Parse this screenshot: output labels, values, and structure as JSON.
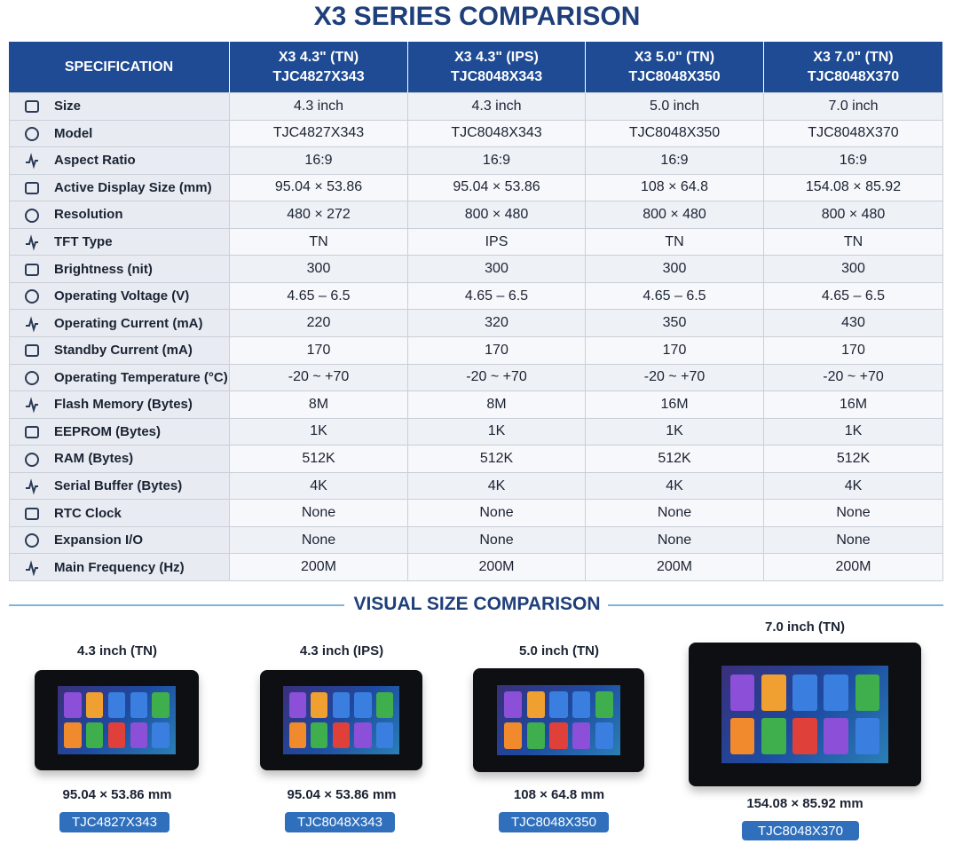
{
  "title": "X3 SERIES COMPARISON",
  "table": {
    "spec_header": "SPECIFICATION",
    "columns": [
      {
        "title": "X3 4.3\" (TN)",
        "model": "TJC4827X343"
      },
      {
        "title": "X3 4.3\" (IPS)",
        "model": "TJC8048X343"
      },
      {
        "title": "X3 5.0\" (TN)",
        "model": "TJC8048X350"
      },
      {
        "title": "X3 7.0\" (TN)",
        "model": "TJC8048X370"
      }
    ],
    "rows": [
      [
        "Size",
        "4.3 inch",
        "4.3 inch",
        "5.0 inch",
        "7.0 inch"
      ],
      [
        "Model",
        "TJC4827X343",
        "TJC8048X343",
        "TJC8048X350",
        "TJC8048X370"
      ],
      [
        "Aspect Ratio",
        "16:9",
        "16:9",
        "16:9",
        "16:9"
      ],
      [
        "Active Display Size (mm)",
        "95.04 × 53.86",
        "95.04 × 53.86",
        "108 × 64.8",
        "154.08 × 85.92"
      ],
      [
        "Resolution",
        "480 × 272",
        "800 × 480",
        "800 × 480",
        "800 × 480"
      ],
      [
        "TFT Type",
        "TN",
        "IPS",
        "TN",
        "TN"
      ],
      [
        "Brightness (nit)",
        "300",
        "300",
        "300",
        "300"
      ],
      [
        "Operating Voltage (V)",
        "4.65 – 6.5",
        "4.65 – 6.5",
        "4.65 – 6.5",
        "4.65 – 6.5"
      ],
      [
        "Operating Current (mA)",
        "220",
        "320",
        "350",
        "430"
      ],
      [
        "Standby Current (mA)",
        "170",
        "170",
        "170",
        "170"
      ],
      [
        "Operating Temperature (°C)",
        "-20 ~ +70",
        "-20 ~ +70",
        "-20 ~ +70",
        "-20 ~ +70"
      ],
      [
        "Flash Memory (Bytes)",
        "8M",
        "8M",
        "16M",
        "16M"
      ],
      [
        "EEPROM (Bytes)",
        "1K",
        "1K",
        "1K",
        "1K"
      ],
      [
        "RAM (Bytes)",
        "512K",
        "512K",
        "512K",
        "512K"
      ],
      [
        "Serial Buffer (Bytes)",
        "4K",
        "4K",
        "4K",
        "4K"
      ],
      [
        "RTC Clock",
        "None",
        "None",
        "None",
        "None"
      ],
      [
        "Expansion I/O",
        "None",
        "None",
        "None",
        "None"
      ],
      [
        "Main Frequency (Hz)",
        "200M",
        "200M",
        "200M",
        "200M"
      ]
    ]
  },
  "visual": {
    "title": "VISUAL SIZE COMPARISON",
    "devices": [
      {
        "label": "4.3 inch (TN)",
        "dims": "95.04 × 53.86 mm",
        "code": "TJC4827X343"
      },
      {
        "label": "4.3 inch (IPS)",
        "dims": "95.04 × 53.86 mm",
        "code": "TJC8048X343"
      },
      {
        "label": "5.0 inch (TN)",
        "dims": "108 × 64.8 mm",
        "code": "TJC8048X350"
      },
      {
        "label": "7.0 inch (TN)",
        "dims": "154.08 × 85.92 mm",
        "code": "TJC8048X370"
      }
    ]
  }
}
